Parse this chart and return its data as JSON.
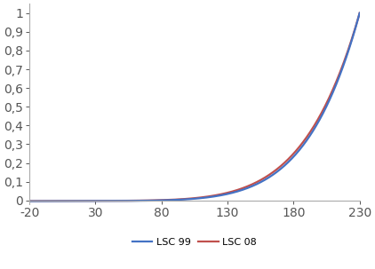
{
  "title": "",
  "xlabel": "",
  "ylabel": "",
  "xlim": [
    -20,
    230
  ],
  "ylim": [
    -0.015,
    1.05
  ],
  "xticks": [
    -20,
    30,
    80,
    130,
    180,
    230
  ],
  "yticks": [
    0,
    0.1,
    0.2,
    0.3,
    0.4,
    0.5,
    0.6,
    0.7,
    0.8,
    0.9,
    1
  ],
  "ytick_labels": [
    "0",
    "0,1",
    "0,2",
    "0,3",
    "0,4",
    "0,5",
    "0,6",
    "0,7",
    "0,8",
    "0,9",
    "1"
  ],
  "color_lsc99": "#4472C4",
  "color_lsc08": "#C0504D",
  "legend_labels": [
    "LSC 99",
    "LSC 08"
  ],
  "background_color": "#FFFFFF",
  "line_width": 1.6,
  "power_99": 6.5,
  "power_08": 6.2
}
